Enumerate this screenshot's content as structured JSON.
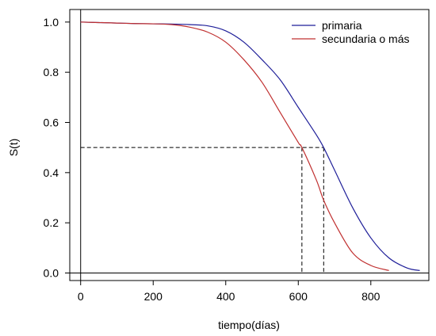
{
  "chart_data": {
    "type": "line",
    "title": "",
    "xlabel": "tiempo(días)",
    "ylabel": "S(t)",
    "xlim": [
      -30,
      960
    ],
    "ylim": [
      -0.03,
      1.05
    ],
    "x_ticks": [
      0,
      200,
      400,
      600,
      800
    ],
    "y_ticks": [
      0.0,
      0.2,
      0.4,
      0.6,
      0.8,
      1.0
    ],
    "x_tick_labels": [
      "0",
      "200",
      "400",
      "600",
      "800"
    ],
    "y_tick_labels": [
      "0.0",
      "0.2",
      "0.4",
      "0.6",
      "0.8",
      "1.0"
    ],
    "grid": false,
    "legend_position": "top-right",
    "series": [
      {
        "name": "primaria",
        "color": "#1f1f99",
        "x": [
          0,
          50,
          100,
          150,
          200,
          250,
          300,
          350,
          400,
          450,
          500,
          550,
          600,
          650,
          670,
          700,
          750,
          800,
          850,
          900,
          935
        ],
        "y": [
          1.0,
          0.998,
          0.996,
          0.994,
          0.993,
          0.992,
          0.99,
          0.985,
          0.965,
          0.92,
          0.85,
          0.77,
          0.66,
          0.55,
          0.5,
          0.41,
          0.26,
          0.14,
          0.06,
          0.02,
          0.01
        ]
      },
      {
        "name": "secundaria o más",
        "color": "#c03030",
        "x": [
          0,
          50,
          100,
          150,
          200,
          250,
          300,
          350,
          400,
          450,
          500,
          550,
          600,
          610,
          650,
          670,
          700,
          750,
          800,
          850
        ],
        "y": [
          1.0,
          0.998,
          0.996,
          0.994,
          0.993,
          0.99,
          0.98,
          0.96,
          0.92,
          0.85,
          0.76,
          0.64,
          0.52,
          0.5,
          0.37,
          0.29,
          0.2,
          0.08,
          0.03,
          0.01
        ]
      }
    ],
    "reference_lines": {
      "horizontal_y": 0.5,
      "horizontal_x_end": 670,
      "vertical_x": [
        610,
        670
      ],
      "style": "dashed"
    },
    "axis_lines": {
      "x_zero": 0,
      "y_zero": 0
    }
  }
}
